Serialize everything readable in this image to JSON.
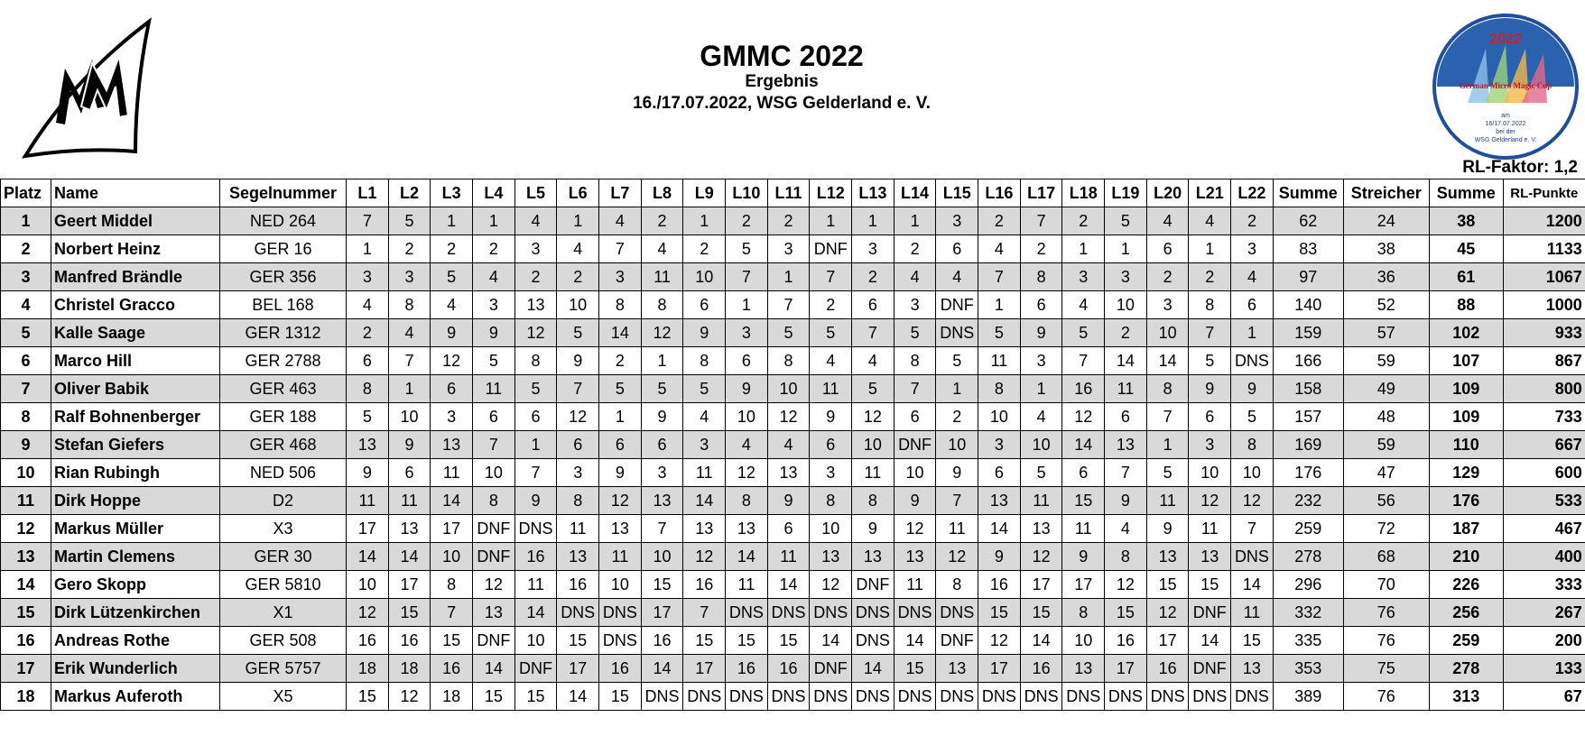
{
  "header": {
    "title": "GMMC 2022",
    "subtitle": "Ergebnis",
    "event": "16./17.07.2022, WSG Gelderland e. V.",
    "factor": "RL-Faktor: 1,2",
    "badge": {
      "year": "2022",
      "name": "German Micro Magic Cup",
      "line1": "am",
      "line2": "16/17.07.2022",
      "line3": "bei der",
      "line4": "WSG Gelderland e. V."
    }
  },
  "table": {
    "headers": [
      "Platz",
      "Name",
      "Segelnummer",
      "L1",
      "L2",
      "L3",
      "L4",
      "L5",
      "L6",
      "L7",
      "L8",
      "L9",
      "L10",
      "L11",
      "L12",
      "L13",
      "L14",
      "L15",
      "L16",
      "L17",
      "L18",
      "L19",
      "L20",
      "L21",
      "L22",
      "Summe",
      "Streicher",
      "Summe",
      "RL-Punkte"
    ],
    "rows": [
      [
        1,
        "Geert Middel",
        "NED 264",
        7,
        5,
        1,
        1,
        4,
        1,
        4,
        2,
        1,
        2,
        2,
        1,
        1,
        1,
        3,
        2,
        7,
        2,
        5,
        4,
        4,
        2,
        62,
        24,
        38,
        1200
      ],
      [
        2,
        "Norbert Heinz",
        "GER 16",
        1,
        2,
        2,
        2,
        3,
        4,
        7,
        4,
        2,
        5,
        3,
        "DNF",
        3,
        2,
        6,
        4,
        2,
        1,
        1,
        6,
        1,
        3,
        83,
        38,
        45,
        1133
      ],
      [
        3,
        "Manfred Brändle",
        "GER 356",
        3,
        3,
        5,
        4,
        2,
        2,
        3,
        11,
        10,
        7,
        1,
        7,
        2,
        4,
        4,
        7,
        8,
        3,
        3,
        2,
        2,
        4,
        97,
        36,
        61,
        1067
      ],
      [
        4,
        "Christel Gracco",
        "BEL 168",
        4,
        8,
        4,
        3,
        13,
        10,
        8,
        8,
        6,
        1,
        7,
        2,
        6,
        3,
        "DNF",
        1,
        6,
        4,
        10,
        3,
        8,
        6,
        140,
        52,
        88,
        1000
      ],
      [
        5,
        "Kalle Saage",
        "GER 1312",
        2,
        4,
        9,
        9,
        12,
        5,
        14,
        12,
        9,
        3,
        5,
        5,
        7,
        5,
        "DNS",
        5,
        9,
        5,
        2,
        10,
        7,
        1,
        159,
        57,
        102,
        933
      ],
      [
        6,
        "Marco Hill",
        "GER 2788",
        6,
        7,
        12,
        5,
        8,
        9,
        2,
        1,
        8,
        6,
        8,
        4,
        4,
        8,
        5,
        11,
        3,
        7,
        14,
        14,
        5,
        "DNS",
        166,
        59,
        107,
        867
      ],
      [
        7,
        "Oliver Babik",
        "GER 463",
        8,
        1,
        6,
        11,
        5,
        7,
        5,
        5,
        5,
        9,
        10,
        11,
        5,
        7,
        1,
        8,
        1,
        16,
        11,
        8,
        9,
        9,
        158,
        49,
        109,
        800
      ],
      [
        8,
        "Ralf Bohnenberger",
        "GER 188",
        5,
        10,
        3,
        6,
        6,
        12,
        1,
        9,
        4,
        10,
        12,
        9,
        12,
        6,
        2,
        10,
        4,
        12,
        6,
        7,
        6,
        5,
        157,
        48,
        109,
        733
      ],
      [
        9,
        "Stefan Giefers",
        "GER 468",
        13,
        9,
        13,
        7,
        1,
        6,
        6,
        6,
        3,
        4,
        4,
        6,
        10,
        "DNF",
        10,
        3,
        10,
        14,
        13,
        1,
        3,
        8,
        169,
        59,
        110,
        667
      ],
      [
        10,
        "Rian Rubingh",
        "NED 506",
        9,
        6,
        11,
        10,
        7,
        3,
        9,
        3,
        11,
        12,
        13,
        3,
        11,
        10,
        9,
        6,
        5,
        6,
        7,
        5,
        10,
        10,
        176,
        47,
        129,
        600
      ],
      [
        11,
        "Dirk Hoppe",
        "D2",
        11,
        11,
        14,
        8,
        9,
        8,
        12,
        13,
        14,
        8,
        9,
        8,
        8,
        9,
        7,
        13,
        11,
        15,
        9,
        11,
        12,
        12,
        232,
        56,
        176,
        533
      ],
      [
        12,
        "Markus Müller",
        "X3",
        17,
        13,
        17,
        "DNF",
        "DNS",
        11,
        13,
        7,
        13,
        13,
        6,
        10,
        9,
        12,
        11,
        14,
        13,
        11,
        4,
        9,
        11,
        7,
        259,
        72,
        187,
        467
      ],
      [
        13,
        "Martin Clemens",
        "GER 30",
        14,
        14,
        10,
        "DNF",
        16,
        13,
        11,
        10,
        12,
        14,
        11,
        13,
        13,
        13,
        12,
        9,
        12,
        9,
        8,
        13,
        13,
        "DNS",
        278,
        68,
        210,
        400
      ],
      [
        14,
        "Gero Skopp",
        "GER 5810",
        10,
        17,
        8,
        12,
        11,
        16,
        10,
        15,
        16,
        11,
        14,
        12,
        "DNF",
        11,
        8,
        16,
        17,
        17,
        12,
        15,
        15,
        14,
        296,
        70,
        226,
        333
      ],
      [
        15,
        "Dirk Lützenkirchen",
        "X1",
        12,
        15,
        7,
        13,
        14,
        "DNS",
        "DNS",
        17,
        7,
        "DNS",
        "DNS",
        "DNS",
        "DNS",
        "DNS",
        "DNS",
        15,
        15,
        8,
        15,
        12,
        "DNF",
        11,
        332,
        76,
        256,
        267
      ],
      [
        16,
        "Andreas Rothe",
        "GER 508",
        16,
        16,
        15,
        "DNF",
        10,
        15,
        "DNS",
        16,
        15,
        15,
        15,
        14,
        "DNS",
        14,
        "DNF",
        12,
        14,
        10,
        16,
        17,
        14,
        15,
        335,
        76,
        259,
        200
      ],
      [
        17,
        "Erik Wunderlich",
        "GER 5757",
        18,
        18,
        16,
        14,
        "DNF",
        17,
        16,
        14,
        17,
        16,
        16,
        "DNF",
        14,
        15,
        13,
        17,
        16,
        13,
        17,
        16,
        "DNF",
        13,
        353,
        75,
        278,
        133
      ],
      [
        18,
        "Markus Auferoth",
        "X5",
        15,
        12,
        18,
        15,
        15,
        14,
        15,
        "DNS",
        "DNS",
        "DNS",
        "DNS",
        "DNS",
        "DNS",
        "DNS",
        "DNS",
        "DNS",
        "DNS",
        "DNS",
        "DNS",
        "DNS",
        "DNS",
        "DNS",
        389,
        76,
        313,
        67
      ]
    ]
  }
}
